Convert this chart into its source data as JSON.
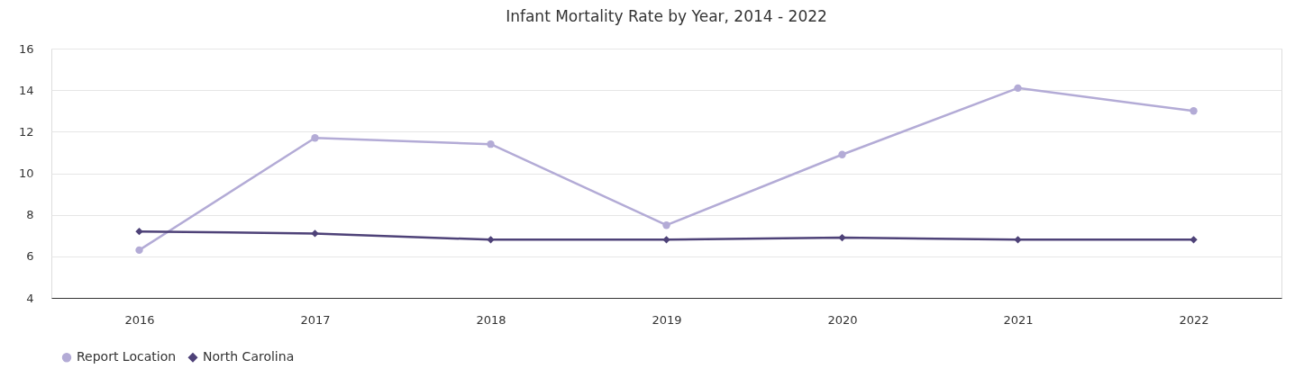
{
  "chart_data": {
    "type": "line",
    "title": "Infant Mortality Rate by Year, 2014 - 2022",
    "categories": [
      "2016",
      "2017",
      "2018",
      "2019",
      "2020",
      "2021",
      "2022"
    ],
    "series": [
      {
        "name": "Report Location",
        "color": "#b3abd6",
        "marker": "circle",
        "values": [
          6.3,
          11.7,
          11.4,
          7.5,
          10.9,
          14.1,
          13.0
        ]
      },
      {
        "name": "North Carolina",
        "color": "#4e4278",
        "marker": "diamond",
        "values": [
          7.2,
          7.1,
          6.8,
          6.8,
          6.9,
          6.8,
          6.8
        ]
      }
    ],
    "ylim": [
      4,
      16
    ],
    "yticks": [
      4,
      6,
      8,
      10,
      12,
      14,
      16
    ],
    "grid": "y",
    "legend": "bottom",
    "line_style": "solid"
  }
}
